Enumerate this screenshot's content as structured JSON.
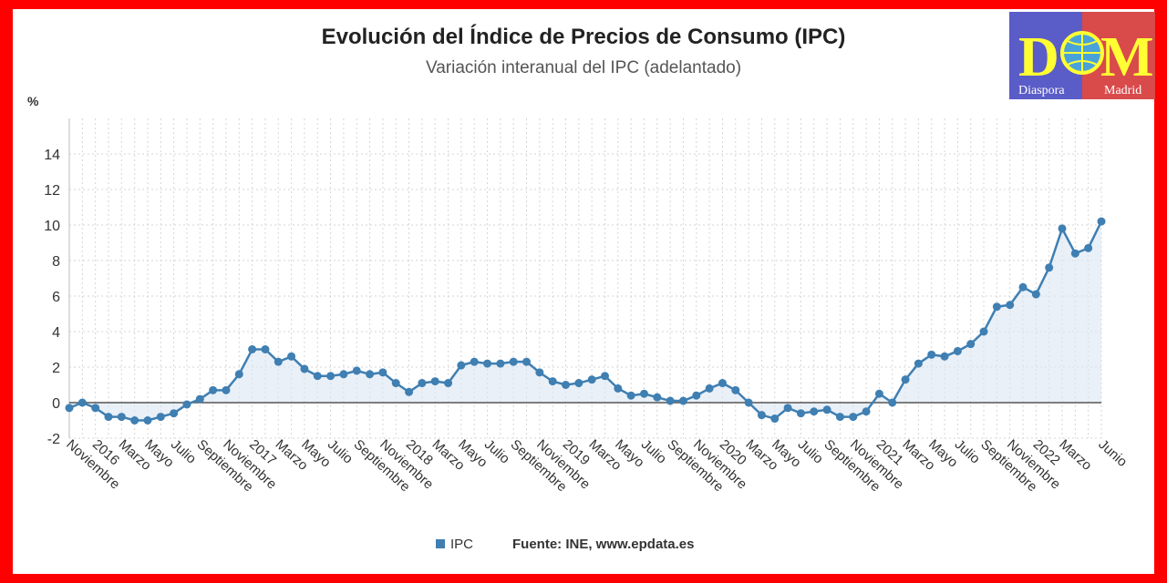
{
  "chart_data": {
    "type": "line",
    "title": "Evolución del Índice de Precios de Consumo (IPC)",
    "subtitle": "Variación interanual del IPC (adelantado)",
    "ylabel": "%",
    "ylim": [
      -2,
      16
    ],
    "yticks": [
      -2,
      0,
      2,
      4,
      6,
      8,
      10,
      12,
      14
    ],
    "grid": true,
    "legend_position": "bottom",
    "source": "Fuente: INE, www.epdata.es",
    "series": [
      {
        "name": "IPC",
        "color": "#3f7fb2",
        "values": [
          -0.3,
          0.0,
          -0.3,
          -0.8,
          -0.8,
          -1.0,
          -1.0,
          -0.8,
          -0.6,
          -0.1,
          0.2,
          0.7,
          0.7,
          1.6,
          3.0,
          3.0,
          2.3,
          2.6,
          1.9,
          1.5,
          1.5,
          1.6,
          1.8,
          1.6,
          1.7,
          1.1,
          0.6,
          1.1,
          1.2,
          1.1,
          2.1,
          2.3,
          2.2,
          2.2,
          2.3,
          2.3,
          1.7,
          1.2,
          1.0,
          1.1,
          1.3,
          1.5,
          0.8,
          0.4,
          0.5,
          0.3,
          0.1,
          0.1,
          0.4,
          0.8,
          1.1,
          0.7,
          0.0,
          -0.7,
          -0.9,
          -0.3,
          -0.6,
          -0.5,
          -0.4,
          -0.8,
          -0.8,
          -0.5,
          0.5,
          0.0,
          1.3,
          2.2,
          2.7,
          2.6,
          2.9,
          3.3,
          4.0,
          5.4,
          5.5,
          6.5,
          6.1,
          7.6,
          9.8,
          8.4,
          8.7,
          10.2
        ]
      }
    ],
    "x_labels": [
      {
        "index": 0,
        "text": "Noviembre"
      },
      {
        "index": 2,
        "text": "2016"
      },
      {
        "index": 4,
        "text": "Marzo"
      },
      {
        "index": 6,
        "text": "Mayo"
      },
      {
        "index": 8,
        "text": "Julio"
      },
      {
        "index": 10,
        "text": "Septiembre"
      },
      {
        "index": 12,
        "text": "Noviembre"
      },
      {
        "index": 14,
        "text": "2017"
      },
      {
        "index": 16,
        "text": "Marzo"
      },
      {
        "index": 18,
        "text": "Mayo"
      },
      {
        "index": 20,
        "text": "Julio"
      },
      {
        "index": 22,
        "text": "Septiembre"
      },
      {
        "index": 24,
        "text": "Noviembre"
      },
      {
        "index": 26,
        "text": "2018"
      },
      {
        "index": 28,
        "text": "Marzo"
      },
      {
        "index": 30,
        "text": "Mayo"
      },
      {
        "index": 32,
        "text": "Julio"
      },
      {
        "index": 34,
        "text": "Septiembre"
      },
      {
        "index": 36,
        "text": "Noviembre"
      },
      {
        "index": 38,
        "text": "2019"
      },
      {
        "index": 40,
        "text": "Marzo"
      },
      {
        "index": 42,
        "text": "Mayo"
      },
      {
        "index": 44,
        "text": "Julio"
      },
      {
        "index": 46,
        "text": "Septiembre"
      },
      {
        "index": 48,
        "text": "Noviembre"
      },
      {
        "index": 50,
        "text": "2020"
      },
      {
        "index": 52,
        "text": "Marzo"
      },
      {
        "index": 54,
        "text": "Mayo"
      },
      {
        "index": 56,
        "text": "Julio"
      },
      {
        "index": 58,
        "text": "Septiembre"
      },
      {
        "index": 60,
        "text": "Noviembre"
      },
      {
        "index": 62,
        "text": "2021"
      },
      {
        "index": 64,
        "text": "Marzo"
      },
      {
        "index": 66,
        "text": "Mayo"
      },
      {
        "index": 68,
        "text": "Julio"
      },
      {
        "index": 70,
        "text": "Septiembre"
      },
      {
        "index": 72,
        "text": "Noviembre"
      },
      {
        "index": 74,
        "text": "2022"
      },
      {
        "index": 76,
        "text": "Marzo"
      },
      {
        "index": 79,
        "text": "Junio"
      }
    ]
  },
  "logo": {
    "letters": [
      "D",
      "M"
    ],
    "left_text": "Diaspora",
    "right_text": "Madrid",
    "color_left": "#5a5cc8",
    "color_right": "#d94a4a",
    "letter_color": "#ffff33"
  }
}
